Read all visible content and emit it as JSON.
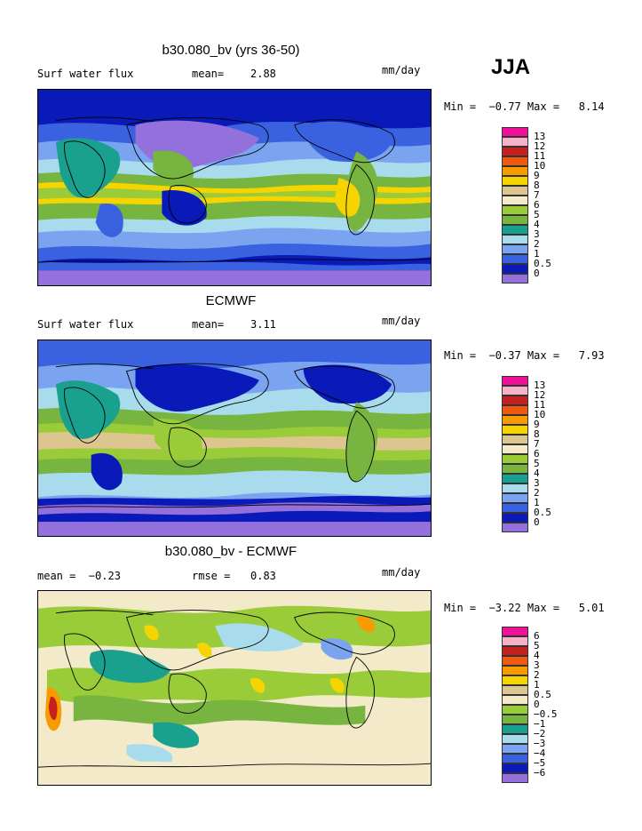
{
  "season": "JJA",
  "panels": [
    {
      "title": "b30.080_bv (yrs 36-50)",
      "left_label": "Surf water flux",
      "mid_label": "mean=",
      "mid_value": "2.88",
      "units": "mm/day",
      "minmax": "Min =  −0.77 Max =   8.14",
      "colorbar": {
        "labels": [
          "13",
          "12",
          "11",
          "10",
          "9",
          "8",
          "7",
          "6",
          "5",
          "4",
          "3",
          "2",
          "1",
          "0.5",
          "0"
        ],
        "colors": [
          "#f0109a",
          "#f6b3c8",
          "#c42020",
          "#f05a10",
          "#f99a00",
          "#f6d400",
          "#dcc58f",
          "#f2eac8",
          "#9acc3a",
          "#78b440",
          "#1aa08e",
          "#a8dcec",
          "#7ba4f0",
          "#3a62e0",
          "#0a1ab8",
          "#9370db"
        ]
      }
    },
    {
      "title": "ECMWF",
      "left_label": "Surf water flux",
      "mid_label": "mean=",
      "mid_value": "3.11",
      "units": "mm/day",
      "minmax": "Min =  −0.37 Max =   7.93",
      "colorbar": {
        "labels": [
          "13",
          "12",
          "11",
          "10",
          "9",
          "8",
          "7",
          "6",
          "5",
          "4",
          "3",
          "2",
          "1",
          "0.5",
          "0"
        ],
        "colors": [
          "#f0109a",
          "#f6b3c8",
          "#c42020",
          "#f05a10",
          "#f99a00",
          "#f6d400",
          "#dcc58f",
          "#f2eac8",
          "#9acc3a",
          "#78b440",
          "#1aa08e",
          "#a8dcec",
          "#7ba4f0",
          "#3a62e0",
          "#0a1ab8",
          "#9370db"
        ]
      }
    },
    {
      "title": "b30.080_bv - ECMWF",
      "left_label": "mean =  −0.23",
      "mid_label": "rmse =",
      "mid_value": "0.83",
      "units": "mm/day",
      "minmax": "Min =  −3.22 Max =   5.01",
      "colorbar": {
        "labels": [
          "6",
          "5",
          "4",
          "3",
          "2",
          "1",
          "0.5",
          "0",
          "−0.5",
          "−1",
          "−2",
          "−3",
          "−4",
          "−5",
          "−6"
        ],
        "colors": [
          "#f0109a",
          "#f6b3c8",
          "#c42020",
          "#f05a10",
          "#f99a00",
          "#f6d400",
          "#dcc58f",
          "#f2eac8",
          "#9acc3a",
          "#78b440",
          "#1aa08e",
          "#a8dcec",
          "#7ba4f0",
          "#3a62e0",
          "#0a1ab8",
          "#9370db"
        ]
      }
    }
  ]
}
